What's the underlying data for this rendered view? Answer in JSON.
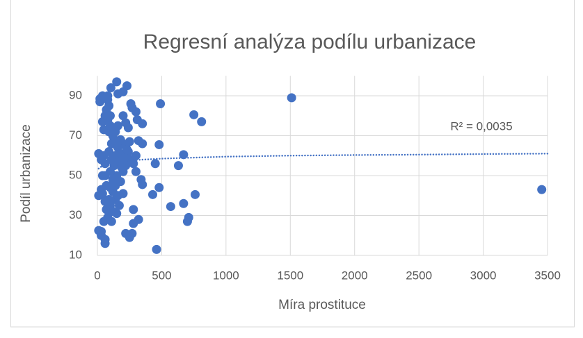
{
  "chart_data": {
    "type": "scatter",
    "title": "Regresní analýza podílu urbanizace",
    "x_label": "Míra prostituce",
    "y_label": "Podíl urbanizace",
    "color": "#4472c4",
    "x": [
      1510,
      3455,
      490,
      750,
      810,
      460,
      700,
      710,
      760,
      670,
      670,
      630,
      570,
      480,
      480,
      430,
      450,
      350,
      320,
      310,
      350,
      300,
      270,
      260,
      230,
      150,
      105,
      200,
      160,
      240,
      220,
      200,
      300,
      340,
      350,
      320,
      280,
      280,
      270,
      250,
      220,
      30,
      30,
      60,
      60,
      50,
      10,
      20,
      20,
      40,
      60,
      80,
      80,
      90,
      70,
      60,
      40,
      80,
      100,
      50,
      90,
      100,
      120,
      140,
      160,
      180,
      200,
      220,
      240,
      260,
      280,
      300,
      10,
      50,
      60,
      30,
      60,
      40,
      30,
      40,
      10,
      60,
      70,
      100,
      80,
      110,
      120,
      150,
      170,
      140,
      120,
      100,
      140,
      160,
      200,
      180,
      200,
      220,
      150,
      130,
      110,
      90,
      140,
      160,
      180,
      110,
      130,
      150,
      170,
      190,
      210,
      230,
      250,
      120,
      100,
      90,
      70
    ],
    "values": [
      89,
      43,
      86,
      80.5,
      77,
      13,
      27,
      29,
      40.5,
      36,
      60.5,
      55,
      34.5,
      44,
      65.5,
      40.5,
      56,
      66,
      67.5,
      78,
      76,
      82,
      84,
      86,
      95,
      97,
      94,
      92,
      91,
      74,
      76.5,
      80,
      52,
      48,
      45.5,
      28,
      33,
      26,
      21,
      19,
      21,
      22,
      20,
      16,
      18,
      27,
      22.5,
      87,
      88.5,
      90,
      89,
      90,
      88,
      85,
      83,
      80,
      77,
      78,
      80,
      73,
      72,
      75,
      70,
      72,
      75,
      68,
      66,
      65,
      62,
      58,
      56,
      60,
      61,
      60,
      56,
      58,
      50,
      50,
      43,
      41,
      40,
      37,
      33,
      35,
      29,
      27,
      32,
      31,
      35,
      38,
      42,
      44,
      45,
      40,
      41,
      47,
      52,
      55,
      50,
      55,
      58,
      62,
      60,
      64,
      61,
      66,
      68,
      65,
      57,
      54,
      59,
      63,
      67,
      48,
      52,
      38,
      45
    ],
    "xlim": [
      0,
      3500
    ],
    "xticks": [
      0,
      500,
      1000,
      1500,
      2000,
      2500,
      3000,
      3500
    ],
    "ylim": [
      10,
      100
    ],
    "yticks": [
      10,
      30,
      50,
      70,
      90
    ],
    "grid": true,
    "trendline": {
      "label": "R² = 0,0035",
      "x": [
        10,
        50,
        100,
        200,
        500,
        1000,
        1500,
        2000,
        2500,
        3000,
        3500
      ],
      "values": [
        53.5,
        55.5,
        56.5,
        57.5,
        58.5,
        59.5,
        60,
        60.3,
        60.5,
        60.8,
        61
      ]
    }
  }
}
